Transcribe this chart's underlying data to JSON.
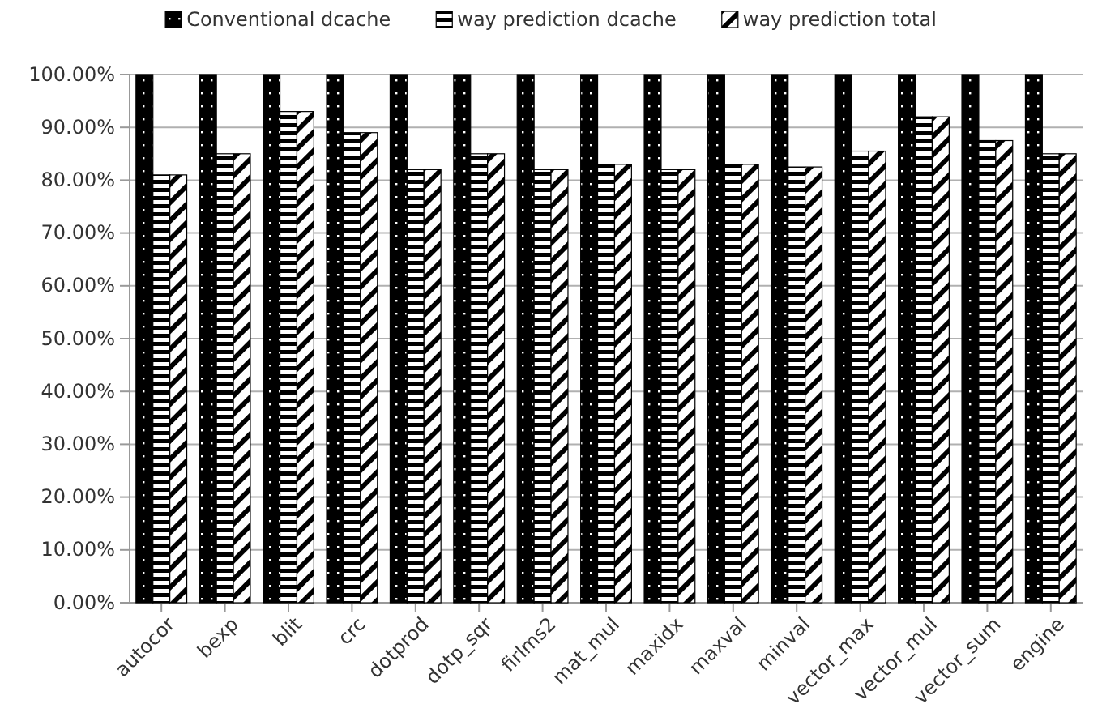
{
  "chart_data": {
    "type": "bar",
    "categories": [
      "autocor",
      "bexp",
      "blit",
      "crc",
      "dotprod",
      "dotp_sqr",
      "firlms2",
      "mat_mul",
      "maxidx",
      "maxval",
      "minval",
      "vector_max",
      "vector_mul",
      "vector_sum",
      "engine"
    ],
    "series": [
      {
        "name": "Conventional dcache",
        "color": "#000000",
        "values": [
          100,
          100,
          100,
          100,
          100,
          100,
          100,
          100,
          100,
          100,
          100,
          100,
          100,
          100,
          100
        ]
      },
      {
        "name": "way prediction dcache",
        "color": "#000000",
        "values": [
          81,
          85,
          93,
          89,
          82,
          85,
          82,
          83,
          82,
          83,
          82.5,
          85.5,
          92,
          87.5,
          85
        ]
      },
      {
        "name": "way prediction total",
        "color": "#000000",
        "values": [
          81,
          85,
          93,
          89,
          82,
          85,
          82,
          83,
          82,
          83,
          82.5,
          85.5,
          92,
          87.5,
          85
        ]
      }
    ],
    "ylim": [
      0,
      100
    ],
    "yticks": [
      {
        "value": 0,
        "label": "0.00%"
      },
      {
        "value": 10,
        "label": "10.00%"
      },
      {
        "value": 20,
        "label": "20.00%"
      },
      {
        "value": 30,
        "label": "30.00%"
      },
      {
        "value": 40,
        "label": "40.00%"
      },
      {
        "value": 50,
        "label": "50.00%"
      },
      {
        "value": 60,
        "label": "60.00%"
      },
      {
        "value": 70,
        "label": "70.00%"
      },
      {
        "value": 80,
        "label": "80.00%"
      },
      {
        "value": 90,
        "label": "90.00%"
      },
      {
        "value": 100,
        "label": "100.00%"
      }
    ],
    "grid": "y",
    "legend": "top"
  }
}
